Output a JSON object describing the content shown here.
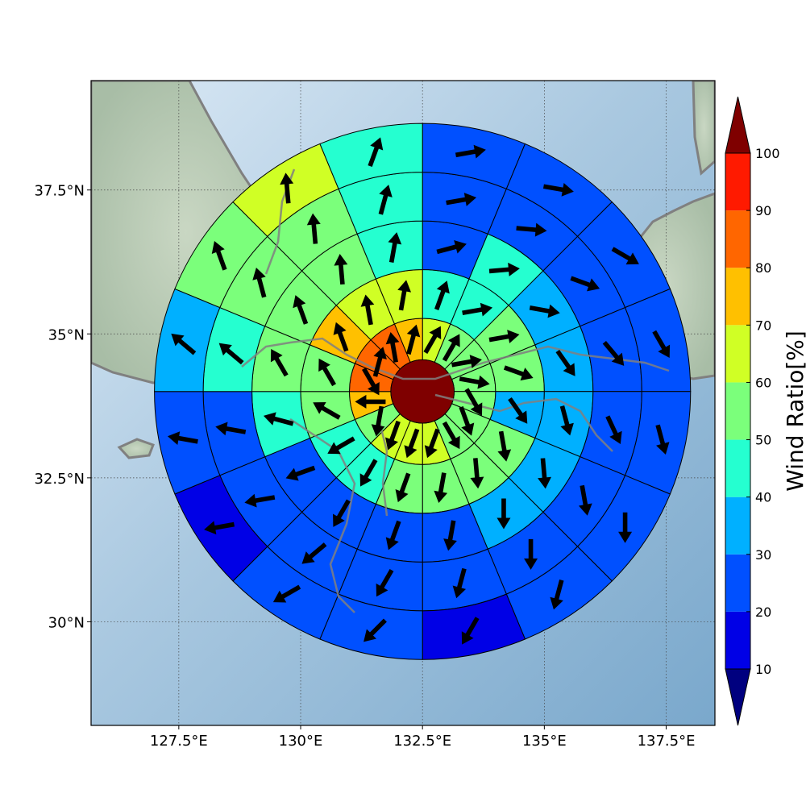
{
  "chart_data": {
    "type": "polar-sector-map",
    "map": {
      "lon_range": [
        125.7,
        138.5
      ],
      "lat_range": [
        28.2,
        39.4
      ],
      "x_ticks": [
        {
          "value": 127.5,
          "label": "127.5°E"
        },
        {
          "value": 130,
          "label": "130°E"
        },
        {
          "value": 132.5,
          "label": "132.5°E"
        },
        {
          "value": 135,
          "label": "135°E"
        },
        {
          "value": 137.5,
          "label": "137.5°E"
        }
      ],
      "y_ticks": [
        {
          "value": 30,
          "label": "30°N"
        },
        {
          "value": 32.5,
          "label": "32.5°N"
        },
        {
          "value": 35,
          "label": "35°N"
        },
        {
          "value": 37.5,
          "label": "37.5°N"
        }
      ],
      "grid": true,
      "gridline_style": "dotted",
      "coastline_color": "#808080"
    },
    "center": {
      "lon": 132.5,
      "lat": 34.0,
      "value": 100
    },
    "ring_outer_radii_deg": [
      0.65,
      1.5,
      2.5,
      3.5,
      4.5,
      5.5
    ],
    "sectors_per_ring": 16,
    "sector_order": "clockwise from north; index 0 spans N to NNE",
    "colorbar": {
      "label": "Wind Ratio[%]",
      "ticks": [
        10,
        20,
        30,
        40,
        50,
        60,
        70,
        80,
        90,
        100
      ],
      "levels": [
        0,
        10,
        20,
        30,
        40,
        50,
        60,
        70,
        80,
        90,
        100,
        110
      ],
      "colors": [
        "#00007f",
        "#0000e6",
        "#0050ff",
        "#00b0ff",
        "#25ffd0",
        "#7bff7b",
        "#d0ff25",
        "#ffc000",
        "#ff6600",
        "#ff1a00",
        "#7f0000"
      ],
      "extend": "both"
    },
    "ring_values": [
      [
        67,
        52,
        52,
        50,
        56,
        56,
        56,
        63,
        63,
        60,
        58,
        77,
        82,
        82,
        82,
        72
      ],
      [
        47,
        47,
        52,
        52,
        38,
        57,
        57,
        57,
        53,
        42,
        42,
        52,
        52,
        77,
        63,
        63
      ],
      [
        25,
        48,
        38,
        32,
        32,
        32,
        32,
        25,
        25,
        28,
        28,
        42,
        56,
        56,
        57,
        47
      ],
      [
        22,
        22,
        22,
        22,
        22,
        22,
        22,
        22,
        22,
        22,
        22,
        26,
        45,
        57,
        57,
        47
      ],
      [
        22,
        22,
        22,
        22,
        22,
        22,
        22,
        12,
        22,
        22,
        12,
        22,
        34,
        52,
        64,
        44
      ]
    ],
    "arrow_directions_deg": [
      [
        30,
        30,
        80,
        100,
        150,
        160,
        150,
        200,
        200,
        200,
        190,
        270,
        150,
        15,
        350,
        15
      ],
      [
        20,
        80,
        80,
        110,
        145,
        170,
        175,
        190,
        200,
        210,
        240,
        300,
        330,
        340,
        350,
        10
      ],
      [
        75,
        85,
        100,
        145,
        165,
        175,
        180,
        190,
        200,
        210,
        250,
        285,
        330,
        340,
        355,
        10
      ],
      [
        80,
        95,
        110,
        140,
        155,
        170,
        180,
        195,
        210,
        230,
        260,
        280,
        310,
        345,
        355,
        15
      ],
      [
        80,
        100,
        120,
        150,
        165,
        180,
        195,
        210,
        225,
        240,
        260,
        280,
        310,
        340,
        355,
        20
      ]
    ]
  }
}
